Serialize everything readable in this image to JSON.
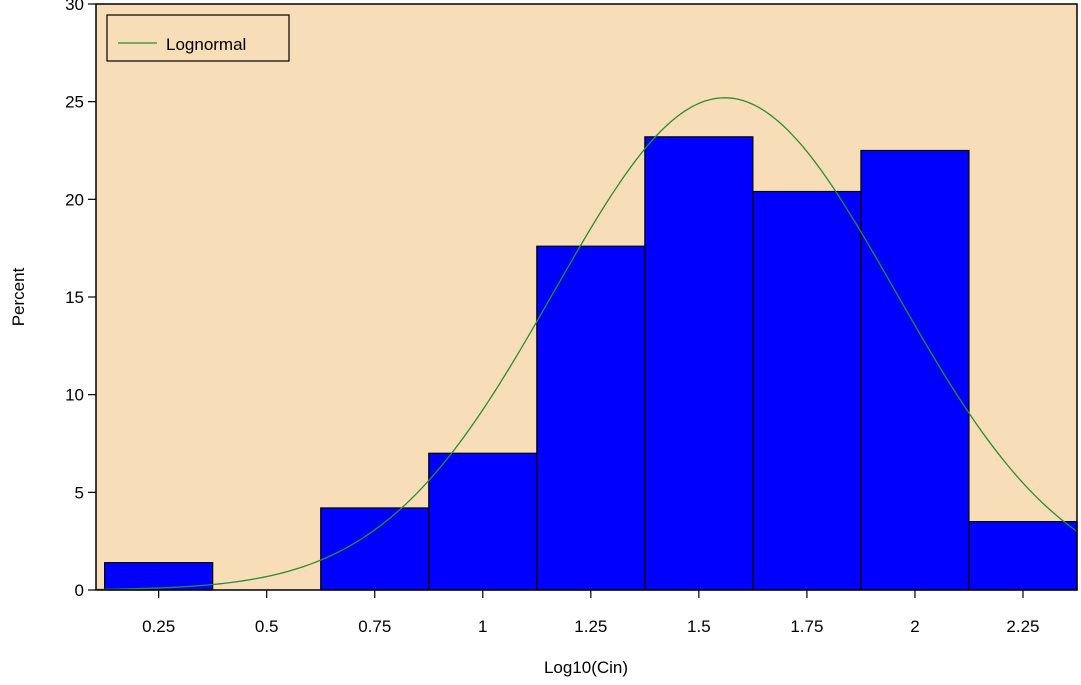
{
  "chart_data": {
    "type": "bar",
    "subtype": "histogram",
    "xlabel": "Log10(Cin)",
    "ylabel": "Percent",
    "bin_width": 0.25,
    "bins": [
      {
        "mid": 0.25,
        "value": 1.4
      },
      {
        "mid": 0.5,
        "value": 0
      },
      {
        "mid": 0.75,
        "value": 4.2
      },
      {
        "mid": 1.0,
        "value": 7.0
      },
      {
        "mid": 1.25,
        "value": 17.6
      },
      {
        "mid": 1.5,
        "value": 23.2
      },
      {
        "mid": 1.75,
        "value": 20.4
      },
      {
        "mid": 2.0,
        "value": 22.5
      },
      {
        "mid": 2.25,
        "value": 3.5
      }
    ],
    "x_ticks": [
      "0.25",
      "0.5",
      "0.75",
      "1",
      "1.25",
      "1.5",
      "1.75",
      "2",
      "2.25"
    ],
    "x_tick_values": [
      0.25,
      0.5,
      0.75,
      1.0,
      1.25,
      1.5,
      1.75,
      2.0,
      2.25
    ],
    "xlim": [
      0.105,
      2.375
    ],
    "y_ticks": [
      0,
      5,
      10,
      15,
      20,
      25,
      30
    ],
    "ylim": [
      0,
      30
    ],
    "grid": false,
    "fit_curve": {
      "name": "Lognormal",
      "distribution": "normal on log10 scale",
      "mean": 1.56,
      "sd": 0.395,
      "peak_percent": 25.2,
      "color": "#2e8b2e"
    },
    "legend": {
      "position": "top-left",
      "entries": [
        "Lognormal"
      ]
    },
    "colors": {
      "background": "#f7deb8",
      "bar_fill": "#0000ff",
      "bar_stroke": "#000000",
      "curve": "#2e8b2e"
    }
  }
}
